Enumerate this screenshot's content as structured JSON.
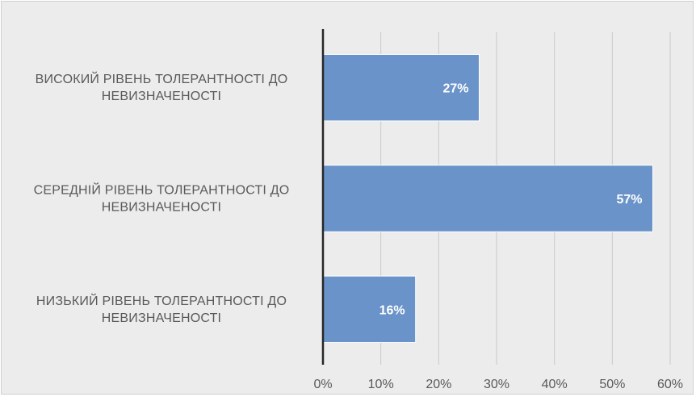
{
  "chart_data": {
    "type": "bar",
    "orientation": "horizontal",
    "categories": [
      [
        "ВИСОКИЙ РІВЕНЬ ТОЛЕРАНТНОСТІ ДО",
        "НЕВИЗНАЧЕНОСТІ"
      ],
      [
        "СЕРЕДНІЙ РІВЕНЬ ТОЛЕРАНТНОСТІ ДО",
        "НЕВИЗНАЧЕНОСТІ"
      ],
      [
        "НИЗЬКИЙ РІВЕНЬ ТОЛЕРАНТНОСТІ ДО",
        "НЕВИЗНАЧЕНОСТІ"
      ]
    ],
    "values": [
      27,
      57,
      16
    ],
    "data_labels": [
      "27%",
      "57%",
      "16%"
    ],
    "xlim": [
      0,
      60
    ],
    "x_ticks": [
      0,
      10,
      20,
      30,
      40,
      50,
      60
    ],
    "x_tick_labels": [
      "0%",
      "10%",
      "20%",
      "30%",
      "40%",
      "50%",
      "60%"
    ],
    "title": "",
    "xlabel": "",
    "ylabel": "",
    "grid": true,
    "legend": "none",
    "colors": {
      "bar": "#6a93c9",
      "bar_edge": "#ffffff",
      "grid": "#c9c9c9",
      "axis": "#262626",
      "background": "#ececec",
      "text": "#595959"
    }
  }
}
